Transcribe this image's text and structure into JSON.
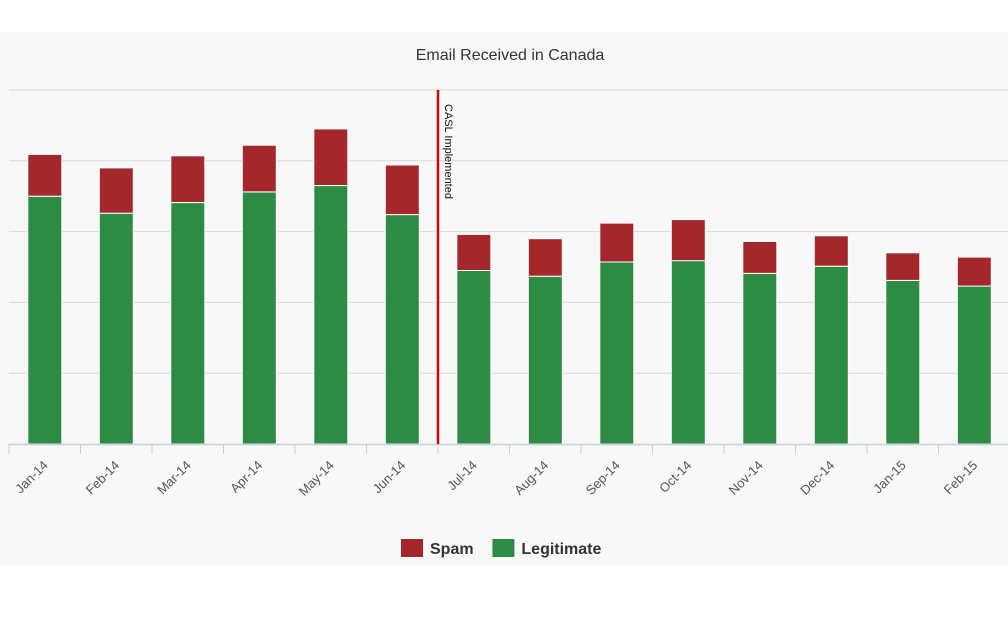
{
  "chart_data": {
    "type": "bar",
    "stacked": true,
    "title": "Email Received in Canada",
    "xlabel": "",
    "ylabel": "",
    "categories": [
      "Jan-14",
      "Feb-14",
      "Mar-14",
      "Apr-14",
      "May-14",
      "Jun-14",
      "Jul-14",
      "Aug-14",
      "Sep-14",
      "Oct-14",
      "Nov-14",
      "Dec-14",
      "Jan-15",
      "Feb-15"
    ],
    "ylim": [
      0,
      5
    ],
    "grid": true,
    "y_tick_labels_shown": false,
    "legend": "bottom-center",
    "series": [
      {
        "name": "Legitimate",
        "color": "#2e8b43",
        "values": [
          3.5,
          3.26,
          3.41,
          3.56,
          3.65,
          3.24,
          2.45,
          2.37,
          2.57,
          2.59,
          2.41,
          2.51,
          2.31,
          2.23
        ]
      },
      {
        "name": "Spam",
        "color": "#a4272b",
        "values": [
          0.59,
          0.64,
          0.66,
          0.66,
          0.8,
          0.7,
          0.51,
          0.53,
          0.55,
          0.58,
          0.45,
          0.43,
          0.39,
          0.41
        ]
      }
    ],
    "annotations": [
      {
        "type": "vertical-line",
        "after_category": "Jun-14",
        "label": "CASL Implemented",
        "color": "#cc0000"
      }
    ]
  }
}
